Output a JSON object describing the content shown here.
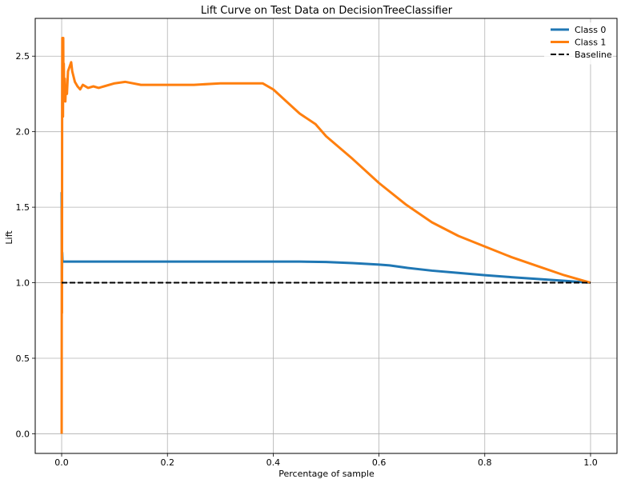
{
  "chart_data": {
    "type": "line",
    "title": "Lift Curve on Test Data on DecisionTreeClassifier",
    "xlabel": "Percentage of sample",
    "ylabel": "Lift",
    "xlim": [
      -0.05,
      1.05
    ],
    "ylim": [
      -0.13,
      2.75
    ],
    "xticks": [
      0.0,
      0.2,
      0.4,
      0.6,
      0.8,
      1.0
    ],
    "xtick_labels": [
      "0.0",
      "0.2",
      "0.4",
      "0.6",
      "0.8",
      "1.0"
    ],
    "yticks": [
      0.0,
      0.5,
      1.0,
      1.5,
      2.0,
      2.5
    ],
    "ytick_labels": [
      "0.0",
      "0.5",
      "1.0",
      "1.5",
      "2.0",
      "2.5"
    ],
    "grid": true,
    "legend_position": "top-right",
    "series": [
      {
        "name": "Class 0",
        "color": "#1f77b4",
        "style": "solid",
        "x": [
          0.0,
          0.0005,
          0.001,
          0.0015,
          0.002,
          0.003,
          0.005,
          0.01,
          0.05,
          0.1,
          0.2,
          0.3,
          0.4,
          0.45,
          0.5,
          0.55,
          0.6,
          0.62,
          0.65,
          0.7,
          0.75,
          0.8,
          0.85,
          0.9,
          0.95,
          1.0
        ],
        "y": [
          1.6,
          1.0,
          1.2,
          1.15,
          1.14,
          1.14,
          1.14,
          1.14,
          1.14,
          1.14,
          1.14,
          1.14,
          1.14,
          1.14,
          1.137,
          1.13,
          1.12,
          1.115,
          1.1,
          1.08,
          1.065,
          1.05,
          1.037,
          1.025,
          1.013,
          1.0
        ]
      },
      {
        "name": "Class 1",
        "color": "#ff7f0e",
        "style": "solid",
        "x": [
          0.0,
          0.0003,
          0.0006,
          0.0009,
          0.0012,
          0.0015,
          0.002,
          0.0025,
          0.003,
          0.0035,
          0.004,
          0.005,
          0.006,
          0.007,
          0.008,
          0.01,
          0.012,
          0.015,
          0.018,
          0.02,
          0.025,
          0.03,
          0.035,
          0.04,
          0.05,
          0.06,
          0.07,
          0.08,
          0.1,
          0.12,
          0.15,
          0.2,
          0.25,
          0.3,
          0.35,
          0.38,
          0.4,
          0.45,
          0.48,
          0.5,
          0.55,
          0.6,
          0.65,
          0.7,
          0.75,
          0.8,
          0.85,
          0.9,
          0.95,
          1.0
        ],
        "y": [
          0.0,
          1.5,
          0.8,
          2.2,
          2.62,
          2.5,
          2.58,
          2.1,
          2.62,
          2.2,
          2.45,
          2.25,
          2.35,
          2.2,
          2.3,
          2.25,
          2.4,
          2.43,
          2.46,
          2.4,
          2.33,
          2.3,
          2.28,
          2.31,
          2.29,
          2.3,
          2.29,
          2.3,
          2.32,
          2.33,
          2.31,
          2.31,
          2.31,
          2.32,
          2.32,
          2.32,
          2.28,
          2.12,
          2.05,
          1.97,
          1.82,
          1.66,
          1.52,
          1.4,
          1.31,
          1.24,
          1.17,
          1.11,
          1.05,
          1.0
        ]
      },
      {
        "name": "Baseline",
        "color": "#000000",
        "style": "dashed",
        "x": [
          0.0,
          1.0
        ],
        "y": [
          1.0,
          1.0
        ]
      }
    ]
  }
}
